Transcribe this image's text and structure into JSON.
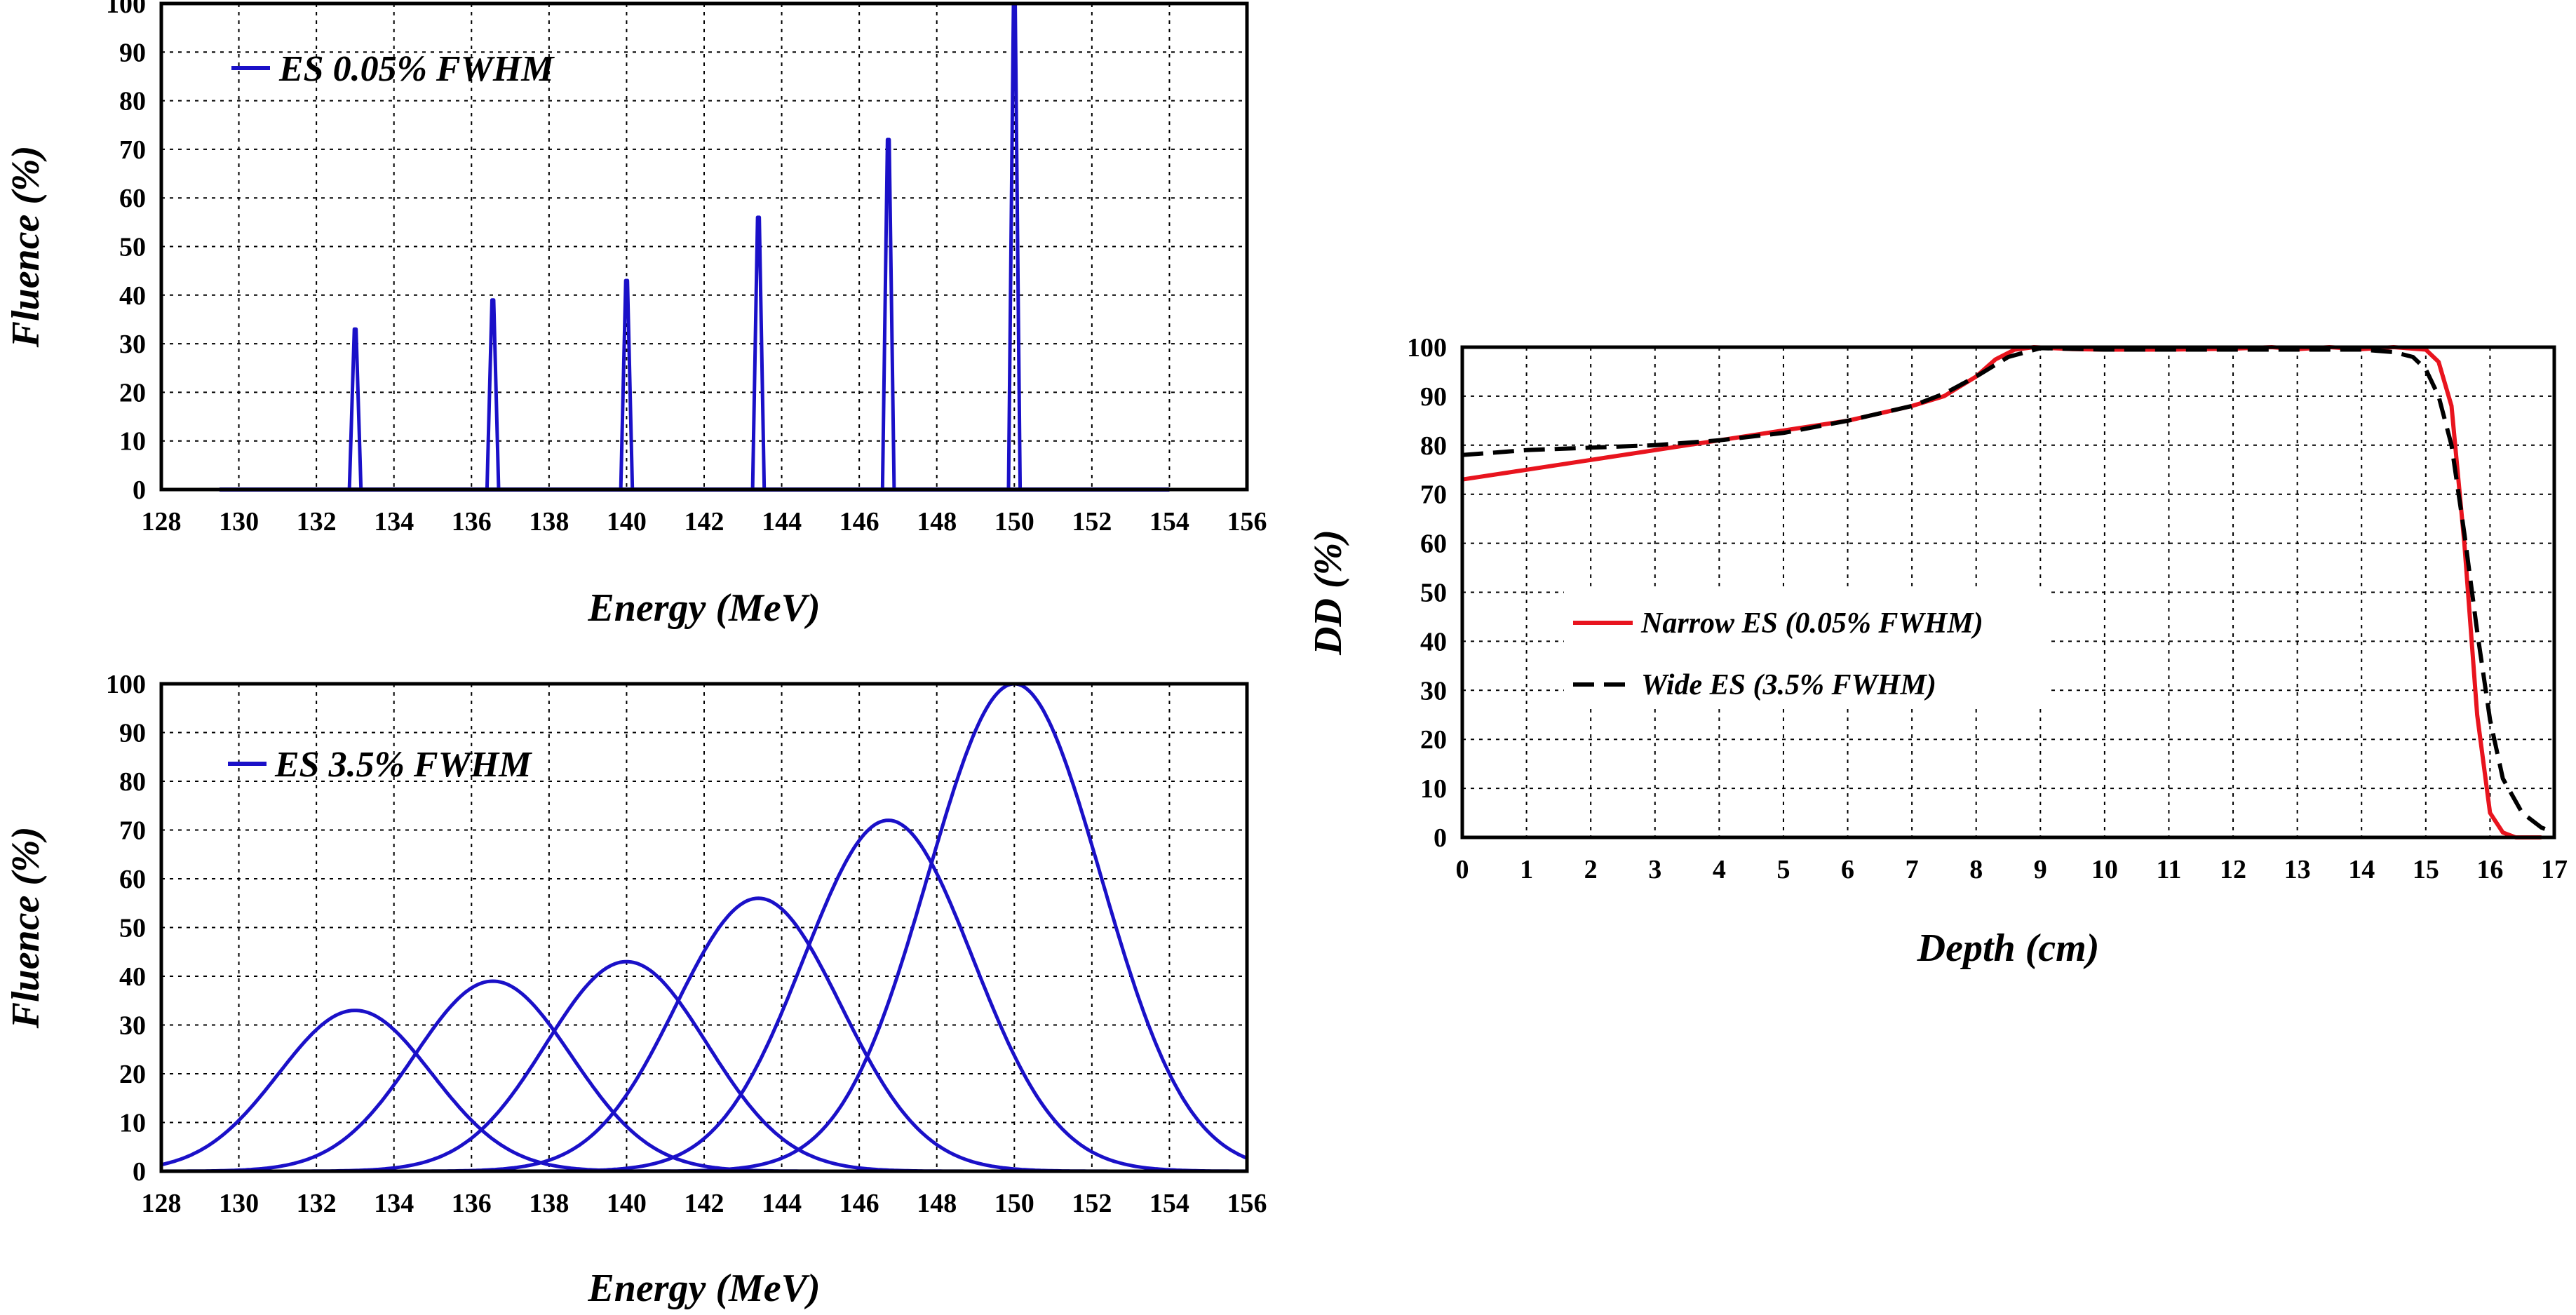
{
  "chart_data": [
    {
      "type": "line",
      "id": "narrow",
      "xlabel": "Energy (MeV)",
      "ylabel": "Fluence  (%)",
      "xlim": [
        128,
        156
      ],
      "ylim": [
        0,
        100
      ],
      "xticks": [
        128,
        130,
        132,
        134,
        136,
        138,
        140,
        142,
        144,
        146,
        148,
        150,
        152,
        154,
        156
      ],
      "yticks": [
        0,
        10,
        20,
        30,
        40,
        50,
        60,
        70,
        80,
        90,
        100
      ],
      "grid": true,
      "legend": {
        "position": "top-left",
        "entries": [
          "ES 0.05% FWHM"
        ]
      },
      "baseline_range": [
        129.5,
        154
      ],
      "fwhm_percent": 0.05,
      "series": [
        {
          "name": "ES 0.05% FWHM",
          "color": "#1a10c8",
          "peaks": [
            {
              "energy": 133.0,
              "fluence": 33
            },
            {
              "energy": 136.55,
              "fluence": 39
            },
            {
              "energy": 140.0,
              "fluence": 43
            },
            {
              "energy": 143.4,
              "fluence": 56
            },
            {
              "energy": 146.75,
              "fluence": 72
            },
            {
              "energy": 150.0,
              "fluence": 100
            }
          ]
        }
      ]
    },
    {
      "type": "line",
      "id": "wide",
      "xlabel": "Energy (MeV)",
      "ylabel": "Fluence  (%)",
      "xlim": [
        128,
        156
      ],
      "ylim": [
        0,
        100
      ],
      "xticks": [
        128,
        130,
        132,
        134,
        136,
        138,
        140,
        142,
        144,
        146,
        148,
        150,
        152,
        154,
        156
      ],
      "yticks": [
        0,
        10,
        20,
        30,
        40,
        50,
        60,
        70,
        80,
        90,
        100
      ],
      "grid": true,
      "legend": {
        "position": "top-left",
        "entries": [
          "ES 3.5% FWHM"
        ]
      },
      "fwhm_percent": 3.5,
      "series": [
        {
          "name": "ES 3.5% FWHM",
          "color": "#1a10c8",
          "peaks": [
            {
              "energy": 133.0,
              "fluence": 33
            },
            {
              "energy": 136.55,
              "fluence": 39
            },
            {
              "energy": 140.0,
              "fluence": 43
            },
            {
              "energy": 143.4,
              "fluence": 56
            },
            {
              "energy": 146.75,
              "fluence": 72
            },
            {
              "energy": 150.0,
              "fluence": 100
            }
          ]
        }
      ]
    },
    {
      "type": "line",
      "id": "depth-dose",
      "xlabel": "Depth (cm)",
      "ylabel": "DD  (%)",
      "xlim": [
        0,
        17
      ],
      "ylim": [
        0,
        100
      ],
      "xticks": [
        0,
        1,
        2,
        3,
        4,
        5,
        6,
        7,
        8,
        9,
        10,
        11,
        12,
        13,
        14,
        15,
        16,
        17
      ],
      "yticks": [
        0,
        10,
        20,
        30,
        40,
        50,
        60,
        70,
        80,
        90,
        100
      ],
      "grid": true,
      "legend": {
        "position": "center-left",
        "entries": [
          "Narrow ES (0.05% FWHM)",
          "Wide ES (3.5% FWHM)"
        ]
      },
      "series": [
        {
          "name": "Narrow ES (0.05% FWHM)",
          "color": "#e8141e",
          "style": "solid",
          "x": [
            0,
            1,
            2,
            3,
            4,
            5,
            6,
            7,
            7.5,
            8,
            8.3,
            8.6,
            8.9,
            9.5,
            10,
            11,
            12,
            12.6,
            13,
            13.5,
            14,
            14.5,
            15,
            15.2,
            15.4,
            15.6,
            15.8,
            16.0,
            16.2,
            16.4,
            16.8
          ],
          "y": [
            73,
            75,
            77,
            79,
            81,
            83,
            85,
            88,
            90,
            94,
            97.5,
            99.5,
            100,
            99.6,
            99.5,
            99.5,
            99.7,
            100,
            99.6,
            100,
            99.6,
            100,
            99.5,
            97,
            88,
            60,
            25,
            5,
            1,
            0,
            0
          ]
        },
        {
          "name": "Wide ES (3.5% FWHM)",
          "color": "#000000",
          "style": "dashed",
          "x": [
            0,
            1,
            2,
            3,
            4,
            5,
            6,
            7,
            7.5,
            8,
            8.5,
            9,
            10,
            11,
            12,
            13,
            14,
            14.5,
            14.8,
            15.0,
            15.2,
            15.4,
            15.6,
            15.8,
            16.0,
            16.2,
            16.5,
            16.8,
            17
          ],
          "y": [
            78,
            79,
            79.5,
            80,
            81,
            82.5,
            85,
            88,
            90.5,
            94,
            98,
            99.8,
            99.5,
            99.5,
            99.5,
            99.5,
            99.5,
            99,
            98,
            95.5,
            90,
            80,
            62,
            42,
            24,
            12,
            5,
            2,
            1
          ]
        }
      ]
    }
  ]
}
